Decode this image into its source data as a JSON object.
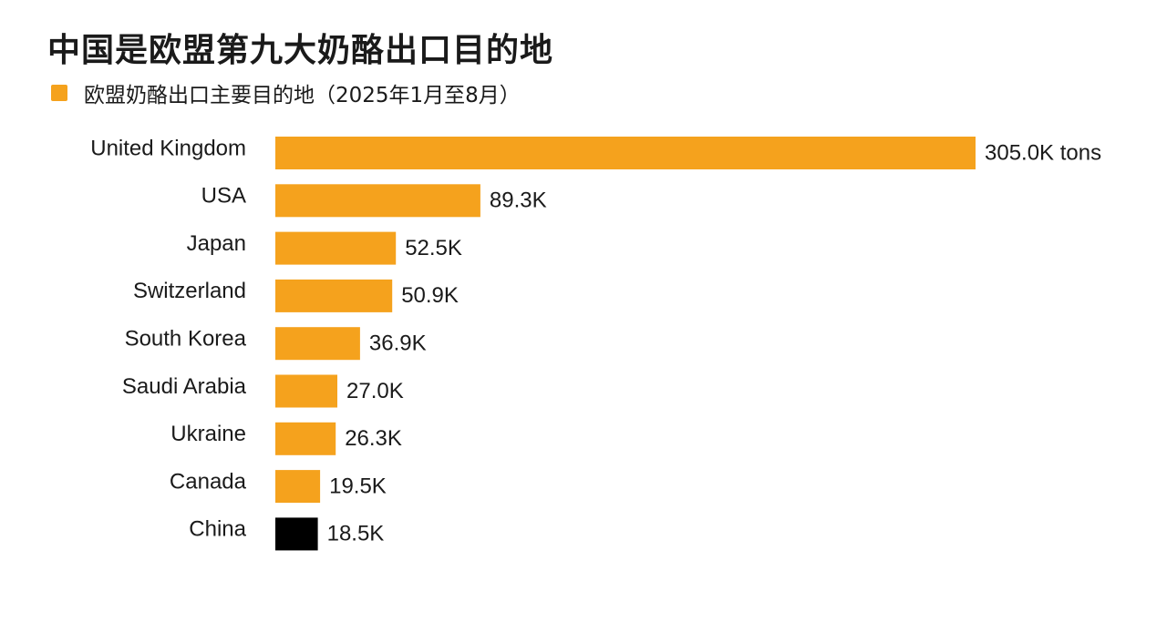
{
  "page": {
    "title": "中国是欧盟第九大奶酪出口目的地"
  },
  "chart_data": {
    "type": "bar",
    "orientation": "horizontal",
    "title": "中国是欧盟第九大奶酪出口目的地",
    "xlabel": "",
    "ylabel": "",
    "legend": {
      "placement": "top-left",
      "entries": [
        "欧盟奶酪出口主要目的地（2025年1月至8月）"
      ]
    },
    "categories": [
      "United Kingdom",
      "USA",
      "Japan",
      "Switzerland",
      "South Korea",
      "Saudi Arabia",
      "Ukraine",
      "Canada",
      "China"
    ],
    "values": [
      305.0,
      89.3,
      52.5,
      50.9,
      36.9,
      27.0,
      26.3,
      19.5,
      18.5
    ],
    "value_labels": [
      "305.0K tons",
      "89.3K",
      "52.5K",
      "50.9K",
      "36.9K",
      "27.0K",
      "26.3K",
      "19.5K",
      "18.5K"
    ],
    "xlim": [
      0,
      305.0
    ],
    "grid": false,
    "colors": {
      "bar": "#f5a21d",
      "highlight": "#000000"
    },
    "highlight_category": "China"
  }
}
